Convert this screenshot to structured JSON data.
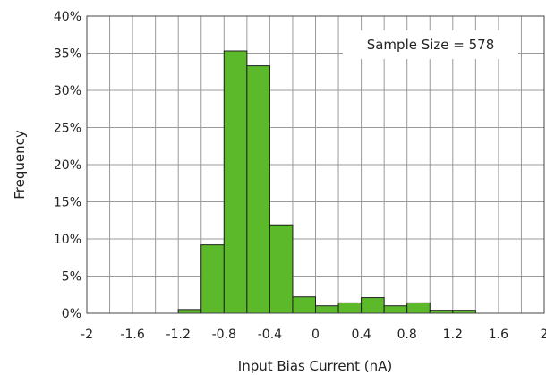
{
  "chart_data": {
    "type": "bar",
    "subtype": "histogram",
    "title": "",
    "xlabel": "Input Bias Current (nA)",
    "ylabel": "Frequency",
    "xlim": [
      -2,
      2
    ],
    "ylim": [
      0,
      40
    ],
    "x_ticks": [
      "-2",
      "-1.6",
      "-1.2",
      "-0.8",
      "-0.4",
      "0",
      "0.4",
      "0.8",
      "1.2",
      "1.6",
      "2"
    ],
    "y_ticks": [
      "0%",
      "5%",
      "10%",
      "15%",
      "20%",
      "25%",
      "30%",
      "35%",
      "40%"
    ],
    "grid": true,
    "bin_width": 0.2,
    "bins": [
      {
        "start": -2.0,
        "value": 0
      },
      {
        "start": -1.8,
        "value": 0
      },
      {
        "start": -1.6,
        "value": 0
      },
      {
        "start": -1.4,
        "value": 0
      },
      {
        "start": -1.2,
        "value": 0.5
      },
      {
        "start": -1.0,
        "value": 9.2
      },
      {
        "start": -0.8,
        "value": 35.3
      },
      {
        "start": -0.6,
        "value": 33.3
      },
      {
        "start": -0.4,
        "value": 11.9
      },
      {
        "start": -0.2,
        "value": 2.2
      },
      {
        "start": 0.0,
        "value": 1.0
      },
      {
        "start": 0.2,
        "value": 1.4
      },
      {
        "start": 0.4,
        "value": 2.1
      },
      {
        "start": 0.6,
        "value": 1.0
      },
      {
        "start": 0.8,
        "value": 1.4
      },
      {
        "start": 1.0,
        "value": 0.4
      },
      {
        "start": 1.2,
        "value": 0.4
      },
      {
        "start": 1.4,
        "value": 0
      },
      {
        "start": 1.6,
        "value": 0
      },
      {
        "start": 1.8,
        "value": 0
      }
    ],
    "bar_color": "#5cba2a",
    "bar_edge_color": "#1f1f1f",
    "annotations": [
      "Sample Size = 578"
    ]
  }
}
